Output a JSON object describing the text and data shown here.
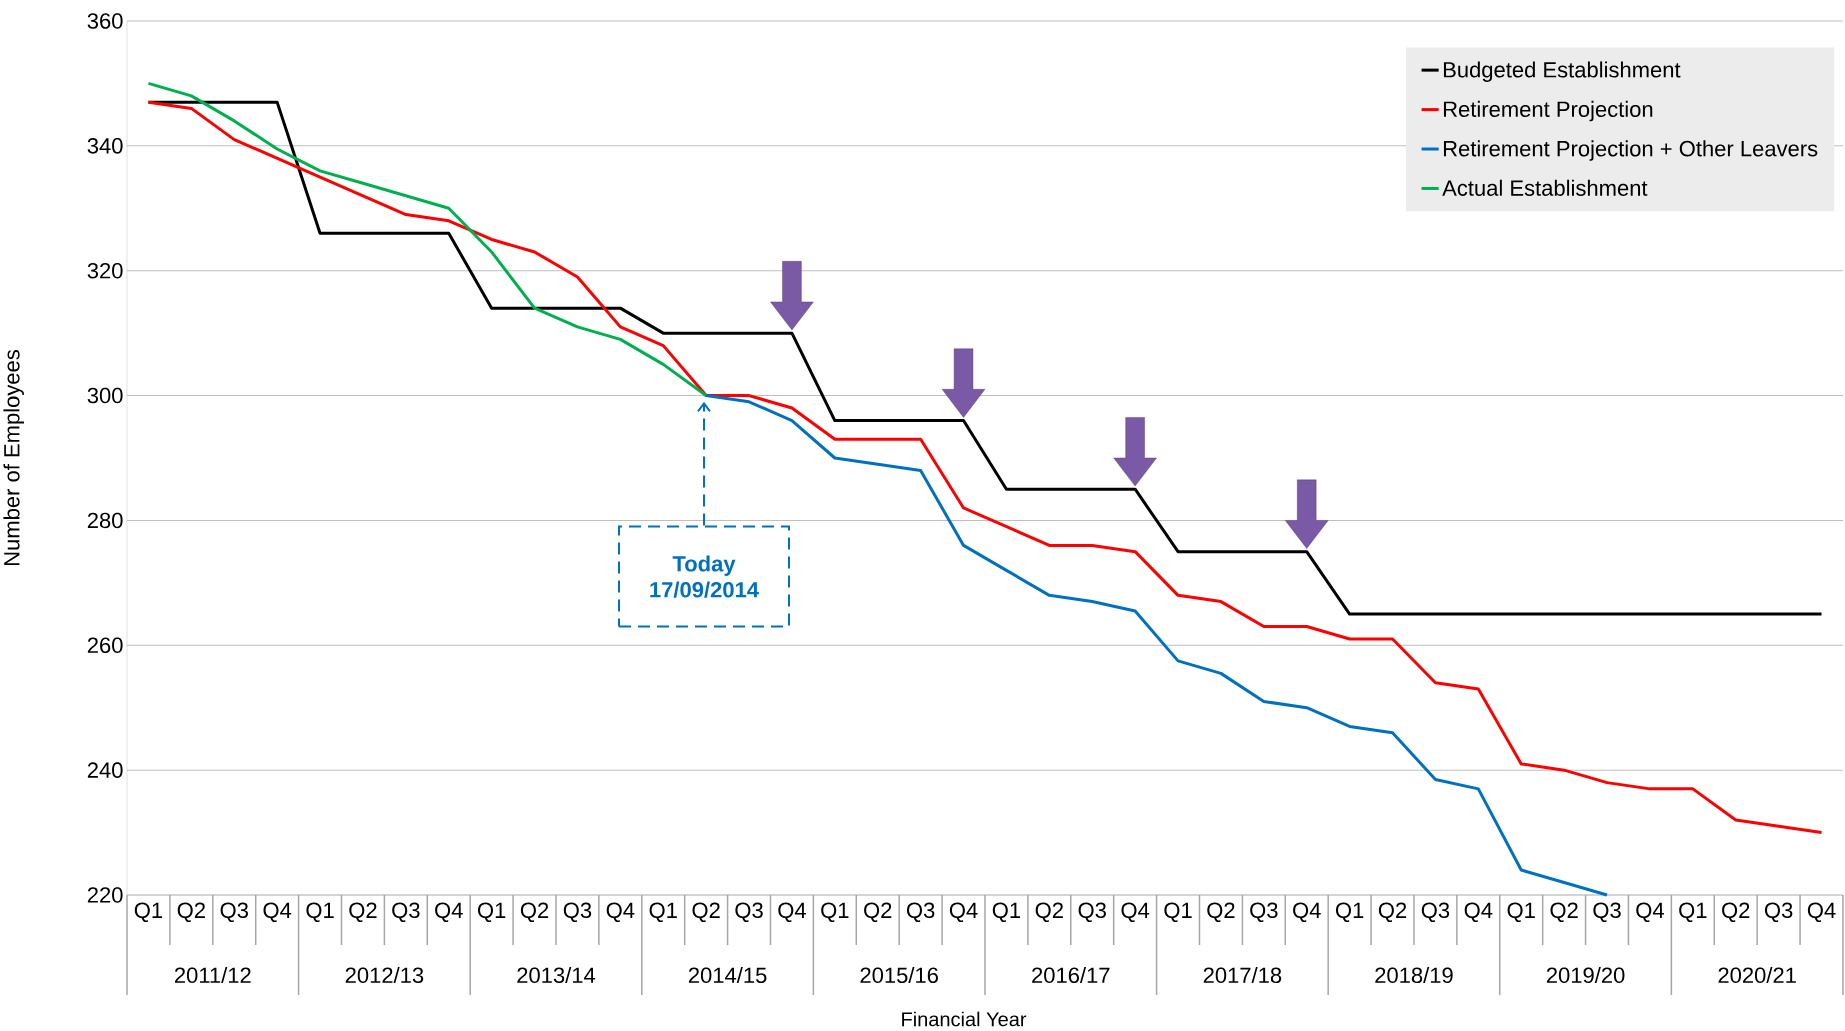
{
  "chart_data": {
    "type": "line",
    "ylabel": "Number of Employees",
    "xlabel": "Financial Year",
    "categories": [
      "Q1",
      "Q2",
      "Q3",
      "Q4",
      "Q1",
      "Q2",
      "Q3",
      "Q4",
      "Q1",
      "Q2",
      "Q3",
      "Q4",
      "Q1",
      "Q2",
      "Q3",
      "Q4",
      "Q1",
      "Q2",
      "Q3",
      "Q4",
      "Q1",
      "Q2",
      "Q3",
      "Q4",
      "Q1",
      "Q2",
      "Q3",
      "Q4",
      "Q1",
      "Q2",
      "Q3",
      "Q4",
      "Q1",
      "Q2",
      "Q3",
      "Q4",
      "Q1",
      "Q2",
      "Q3",
      "Q4"
    ],
    "series": [
      {
        "name": "Budgeted Establishment",
        "color": "#000000",
        "values": [
          347,
          347,
          347,
          347,
          326,
          326,
          326,
          326,
          314,
          314,
          314,
          314,
          310,
          310,
          310,
          310,
          296,
          296,
          296,
          296,
          285,
          285,
          285,
          285,
          275,
          275,
          275,
          275,
          265,
          265,
          265,
          265,
          265,
          265,
          265,
          265,
          265,
          265,
          265,
          265
        ]
      },
      {
        "name": "Retirement Projection",
        "color": "#ff0000",
        "values": [
          347,
          346,
          341,
          338,
          335,
          332,
          329,
          328,
          325,
          323,
          319,
          311,
          308,
          300,
          300,
          298,
          293,
          293,
          293,
          282,
          279,
          276,
          276,
          275,
          268,
          267,
          263,
          263,
          261,
          261,
          254,
          253,
          241,
          240,
          238,
          237,
          237,
          232,
          231,
          230
        ]
      },
      {
        "name": "Retirement Projection + Other Leavers",
        "color": "#0070c0",
        "values": [
          null,
          null,
          null,
          null,
          null,
          null,
          null,
          null,
          null,
          null,
          null,
          null,
          null,
          300,
          299,
          296,
          290,
          289,
          288,
          276,
          272,
          268,
          267,
          265.5,
          257.5,
          255.5,
          251,
          250,
          247,
          246,
          238.5,
          237,
          224,
          222,
          220,
          null,
          null,
          null,
          null,
          null
        ]
      },
      {
        "name": "Actual Establishment",
        "color": "#00b050",
        "values": [
          350,
          348,
          344,
          339.5,
          336,
          334,
          332,
          330,
          323,
          314,
          311,
          309,
          305,
          300,
          null,
          null,
          null,
          null,
          null,
          null,
          null,
          null,
          null,
          null,
          null,
          null,
          null,
          null,
          null,
          null,
          null,
          null,
          null,
          null,
          null,
          null,
          null,
          null,
          null,
          null
        ]
      }
    ],
    "ylim": [
      220,
      360
    ],
    "yticks": [
      220,
      240,
      260,
      280,
      300,
      320,
      340,
      360
    ],
    "grid": "y",
    "legend": "top right",
    "annotations": [
      "Today 17/09/2014",
      "2011/12",
      "2012/13",
      "2013/14",
      "2014/15",
      "2015/16",
      "2016/17",
      "2017/18",
      "2018/19",
      "2019/20",
      "2020/21"
    ]
  }
}
